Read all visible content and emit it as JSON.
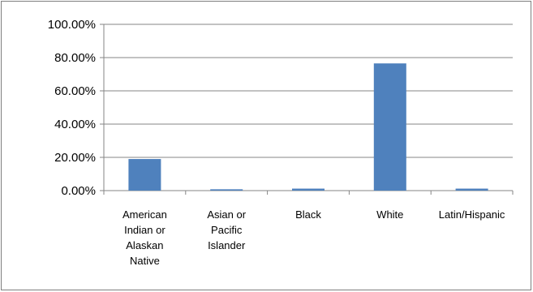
{
  "chart_data": {
    "type": "bar",
    "title": "",
    "xlabel": "",
    "ylabel": "",
    "ylim": [
      0,
      1
    ],
    "y_tick_values": [
      0,
      0.2,
      0.4,
      0.6,
      0.8,
      1.0
    ],
    "y_tick_labels": [
      "0.00%",
      "20.00%",
      "40.00%",
      "60.00%",
      "80.00%",
      "100.00%"
    ],
    "grid": true,
    "legend": "none",
    "categories": [
      [
        "American",
        "Indian or",
        "Alaskan",
        "Native"
      ],
      [
        "Asian or",
        "Pacific",
        "Islander"
      ],
      [
        "Black"
      ],
      [
        "White"
      ],
      [
        "Latin/Hispanic"
      ]
    ],
    "values": [
      0.19,
      0.008,
      0.012,
      0.765,
      0.012
    ],
    "bar_color": "#4f81bd",
    "gridline_color": "#868686"
  }
}
